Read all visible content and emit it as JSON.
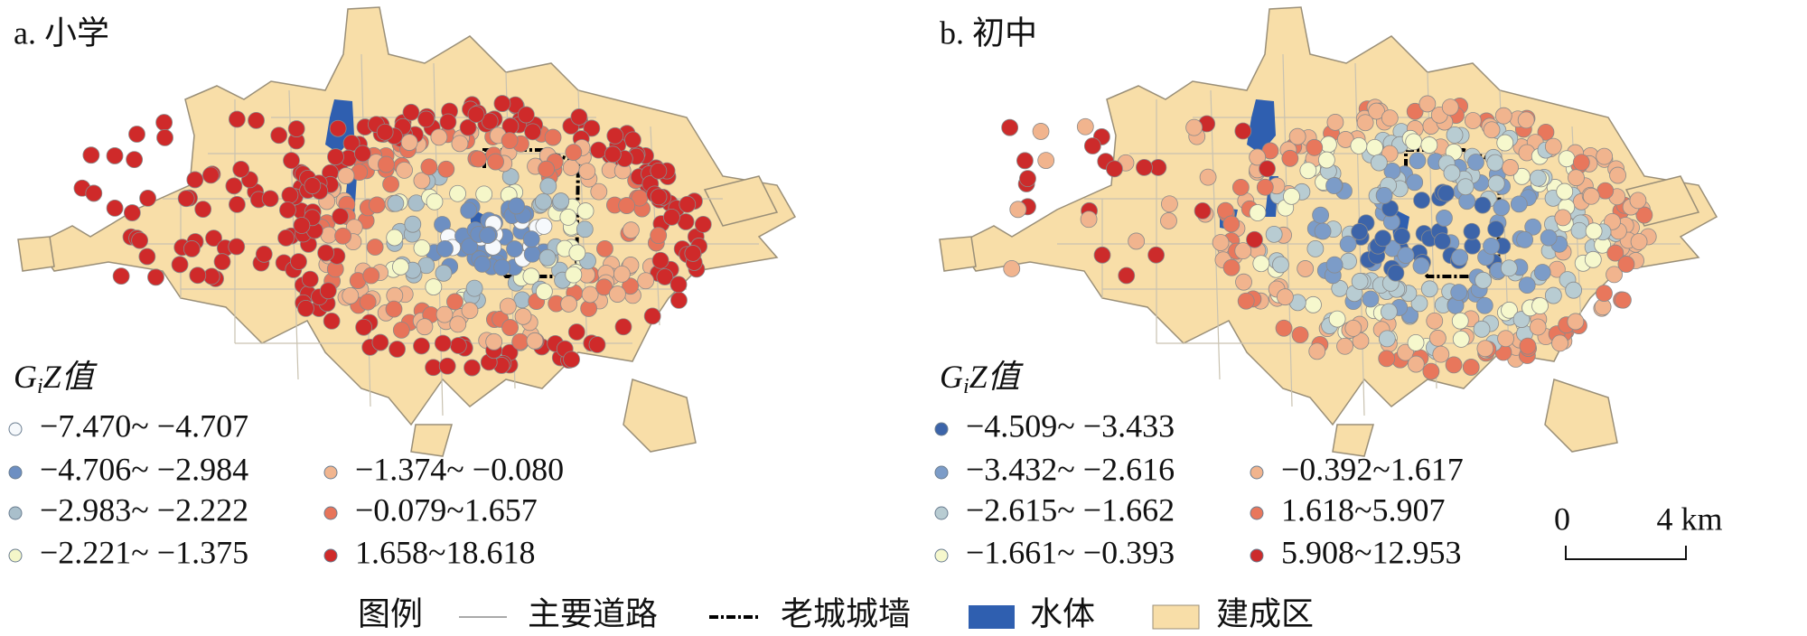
{
  "panels": [
    {
      "title": "a. 小学",
      "legend_title": [
        "G",
        "i",
        "Z值"
      ],
      "classes": [
        {
          "label": "−7.470~ −4.707",
          "color": "#f6f9fc"
        },
        {
          "label": "−4.706~ −2.984",
          "color": "#6d8fc2"
        },
        {
          "label": "−2.983~ −2.222",
          "color": "#a9bfcb"
        },
        {
          "label": "−2.221~ −1.375",
          "color": "#f5f7c9"
        },
        {
          "label": "−1.374~ −0.080",
          "color": "#f1b58f"
        },
        {
          "label": "−0.079~1.657",
          "color": "#e7745a"
        },
        {
          "label": "1.658~18.618",
          "color": "#cf2a2a"
        }
      ]
    },
    {
      "title": "b. 初中",
      "legend_title": [
        "G",
        "i",
        "Z值"
      ],
      "classes": [
        {
          "label": "−4.509~ −3.433",
          "color": "#3c64a9"
        },
        {
          "label": "−3.432~ −2.616",
          "color": "#7c9cc8"
        },
        {
          "label": "−2.615~ −1.662",
          "color": "#b8ccd2"
        },
        {
          "label": "−1.661~ −0.393",
          "color": "#f6f8cd"
        },
        {
          "label": "−0.392~1.617",
          "color": "#f1b48e"
        },
        {
          "label": "1.618~5.907",
          "color": "#e8775c"
        },
        {
          "label": "5.908~12.953",
          "color": "#cc2b2b"
        }
      ]
    }
  ],
  "legend": {
    "title": "图例",
    "items": [
      "主要道路",
      "老城城墙",
      "水体",
      "建成区"
    ]
  },
  "scale_bar": {
    "labels": [
      "0",
      "4 km"
    ]
  }
}
